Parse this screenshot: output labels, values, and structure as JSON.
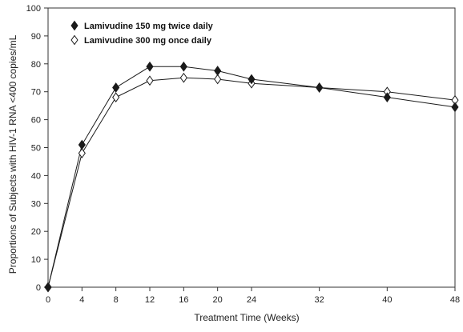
{
  "chart_data": {
    "type": "line",
    "title": "",
    "xlabel": "Treatment Time (Weeks)",
    "ylabel": "Proportions of Subjects with HIV-1 RNA <400 copies/mL",
    "xlim": [
      0,
      48
    ],
    "ylim": [
      0,
      100
    ],
    "x_ticks": [
      0,
      4,
      8,
      12,
      16,
      20,
      24,
      32,
      40,
      48
    ],
    "y_ticks": [
      0,
      10,
      20,
      30,
      40,
      50,
      60,
      70,
      80,
      90,
      100
    ],
    "grid": false,
    "legend_position": "top-left",
    "series": [
      {
        "name": "Lamivudine 150 mg twice daily",
        "marker": "filled-diamond",
        "color": "#1a1a1a",
        "x": [
          0,
          4,
          8,
          12,
          16,
          20,
          24,
          32,
          40,
          48
        ],
        "y": [
          0,
          51,
          71.5,
          79,
          79,
          77.5,
          74.5,
          71.5,
          68,
          64.5
        ]
      },
      {
        "name": "Lamivudine 300 mg once daily",
        "marker": "open-diamond",
        "color": "#1a1a1a",
        "x": [
          0,
          4,
          8,
          12,
          16,
          20,
          24,
          32,
          40,
          48
        ],
        "y": [
          0,
          48,
          68,
          74,
          75,
          74.5,
          73,
          71.5,
          70,
          67
        ]
      }
    ]
  }
}
